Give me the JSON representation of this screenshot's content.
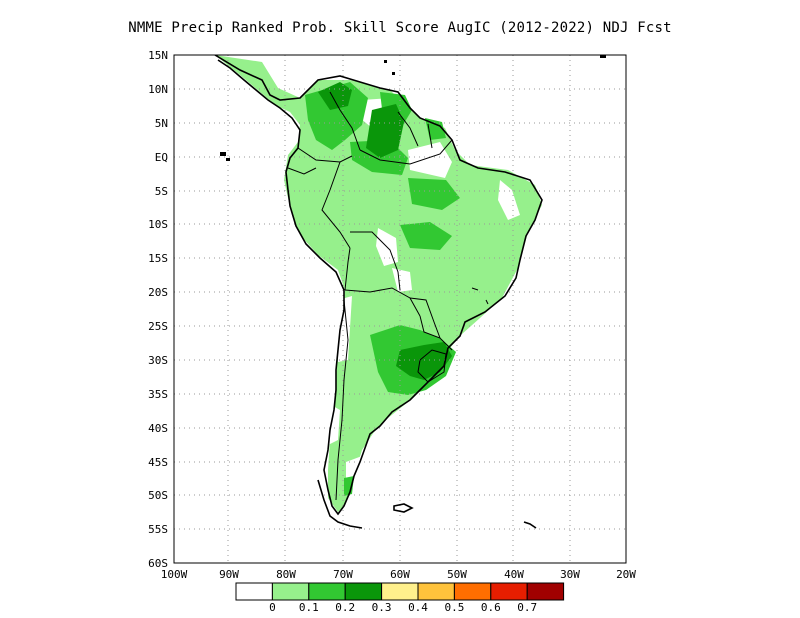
{
  "title": "NMME Precip Ranked Prob. Skill Score AugIC (2012-2022) NDJ Fcst",
  "map": {
    "lat_labels": [
      "15N",
      "10N",
      "5N",
      "EQ",
      "5S",
      "10S",
      "15S",
      "20S",
      "25S",
      "30S",
      "35S",
      "40S",
      "45S",
      "50S",
      "55S",
      "60S"
    ],
    "lon_labels": [
      "100W",
      "90W",
      "80W",
      "70W",
      "60W",
      "50W",
      "40W",
      "30W",
      "20W"
    ],
    "extent": {
      "lon_min": -100,
      "lon_max": -20,
      "lat_min": -60,
      "lat_max": 15
    },
    "gridlines": true,
    "grid_style": "dotted"
  },
  "colorbar": {
    "colors": [
      "#ffffff",
      "#96f08c",
      "#32c832",
      "#0a960a",
      "#fff08c",
      "#ffc33c",
      "#ff6e00",
      "#e61e00",
      "#a00000"
    ],
    "labels": [
      "0",
      "0.1",
      "0.2",
      "0.3",
      "0.4",
      "0.5",
      "0.6",
      "0.7"
    ]
  }
}
